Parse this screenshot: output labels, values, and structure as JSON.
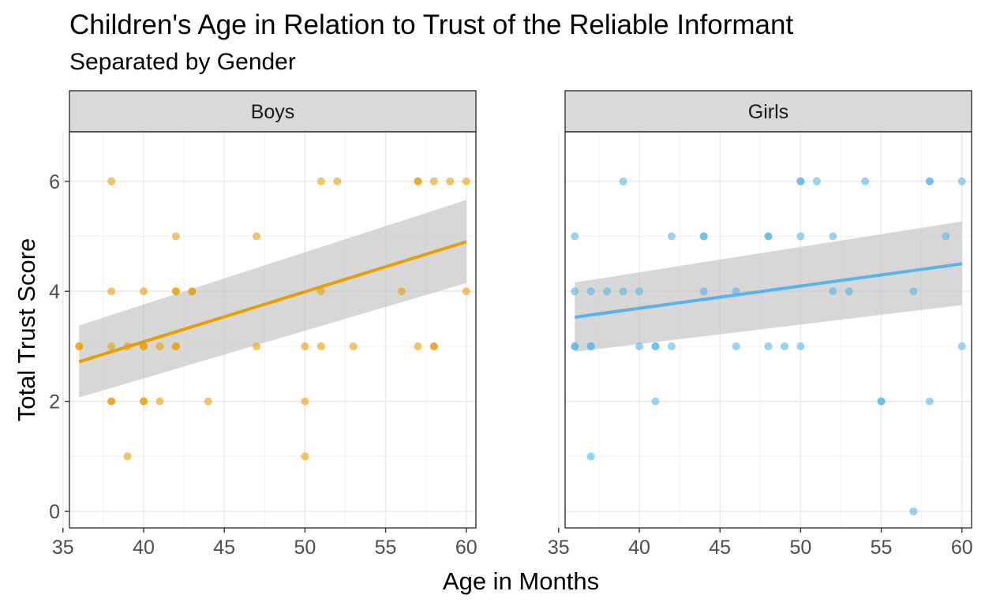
{
  "chart_data": {
    "type": "scatter",
    "title": "Children's Age in Relation to Trust of the Reliable Informant",
    "subtitle": "Separated by Gender",
    "xlabel": "Age in Months",
    "ylabel": "Total Trust Score",
    "xlim": [
      35.4,
      60.6
    ],
    "ylim": [
      -0.3,
      6.9
    ],
    "xticks": [
      35,
      40,
      45,
      50,
      55,
      60
    ],
    "yticks": [
      0,
      2,
      4,
      6
    ],
    "grid": true,
    "legend": "none",
    "panels": [
      {
        "name": "Boys",
        "color": "#E69F00",
        "points": [
          [
            36,
            3
          ],
          [
            36,
            3
          ],
          [
            38,
            6
          ],
          [
            38,
            4
          ],
          [
            38,
            3
          ],
          [
            38,
            2
          ],
          [
            38,
            2
          ],
          [
            39,
            1
          ],
          [
            39,
            3
          ],
          [
            40,
            4
          ],
          [
            40,
            3
          ],
          [
            40,
            3
          ],
          [
            40,
            2
          ],
          [
            40,
            2
          ],
          [
            41,
            3
          ],
          [
            41,
            2
          ],
          [
            42,
            5
          ],
          [
            42,
            4
          ],
          [
            42,
            4
          ],
          [
            42,
            3
          ],
          [
            42,
            3
          ],
          [
            43,
            4
          ],
          [
            43,
            4
          ],
          [
            44,
            2
          ],
          [
            47,
            5
          ],
          [
            47,
            3
          ],
          [
            50,
            3
          ],
          [
            50,
            2
          ],
          [
            50,
            1
          ],
          [
            51,
            6
          ],
          [
            51,
            4
          ],
          [
            51,
            3
          ],
          [
            52,
            6
          ],
          [
            53,
            3
          ],
          [
            56,
            4
          ],
          [
            57,
            6
          ],
          [
            57,
            6
          ],
          [
            57,
            3
          ],
          [
            58,
            6
          ],
          [
            58,
            3
          ],
          [
            58,
            3
          ],
          [
            59,
            6
          ],
          [
            60,
            6
          ],
          [
            60,
            4
          ]
        ],
        "fit": {
          "x": [
            36,
            60
          ],
          "y": [
            2.72,
            4.9
          ]
        },
        "band": {
          "x": [
            36,
            60
          ],
          "lower": [
            2.07,
            4.15
          ],
          "upper": [
            3.38,
            5.66
          ]
        }
      },
      {
        "name": "Girls",
        "color": "#56B4E9",
        "points": [
          [
            36,
            5
          ],
          [
            36,
            4
          ],
          [
            36,
            3
          ],
          [
            36,
            3
          ],
          [
            37,
            4
          ],
          [
            37,
            3
          ],
          [
            37,
            3
          ],
          [
            37,
            1
          ],
          [
            38,
            4
          ],
          [
            39,
            6
          ],
          [
            39,
            4
          ],
          [
            40,
            4
          ],
          [
            40,
            3
          ],
          [
            41,
            3
          ],
          [
            41,
            3
          ],
          [
            41,
            2
          ],
          [
            42,
            5
          ],
          [
            42,
            3
          ],
          [
            44,
            5
          ],
          [
            44,
            5
          ],
          [
            44,
            4
          ],
          [
            46,
            4
          ],
          [
            46,
            3
          ],
          [
            48,
            5
          ],
          [
            48,
            5
          ],
          [
            48,
            3
          ],
          [
            49,
            3
          ],
          [
            50,
            6
          ],
          [
            50,
            6
          ],
          [
            50,
            5
          ],
          [
            50,
            3
          ],
          [
            51,
            6
          ],
          [
            52,
            5
          ],
          [
            52,
            4
          ],
          [
            53,
            4
          ],
          [
            54,
            6
          ],
          [
            55,
            2
          ],
          [
            55,
            2
          ],
          [
            57,
            4
          ],
          [
            57,
            0
          ],
          [
            58,
            6
          ],
          [
            58,
            6
          ],
          [
            58,
            2
          ],
          [
            59,
            5
          ],
          [
            60,
            6
          ],
          [
            60,
            3
          ]
        ],
        "fit": {
          "x": [
            36,
            60
          ],
          "y": [
            3.53,
            4.5
          ]
        },
        "band": {
          "x": [
            36,
            60
          ],
          "lower": [
            2.9,
            3.75
          ],
          "upper": [
            4.16,
            5.27
          ]
        }
      }
    ]
  }
}
